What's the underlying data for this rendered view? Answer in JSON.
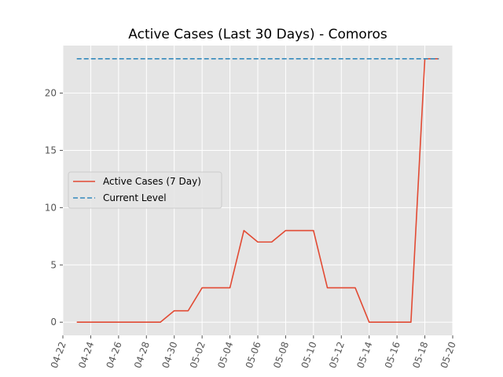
{
  "chart_data": {
    "type": "line",
    "title": "Active Cases (Last 30 Days) - Comoros",
    "xlabel": "",
    "ylabel": "",
    "x_axis_type": "date",
    "xlim": [
      "2020-04-22",
      "2020-05-20"
    ],
    "ylim": [
      -1.15,
      24.15
    ],
    "x_ticks": [
      "04-22",
      "04-24",
      "04-26",
      "04-28",
      "04-30",
      "05-02",
      "05-04",
      "05-06",
      "05-08",
      "05-10",
      "05-12",
      "05-14",
      "05-16",
      "05-18",
      "05-20"
    ],
    "y_ticks": [
      0,
      5,
      10,
      15,
      20
    ],
    "grid": true,
    "legend_position": "center-left",
    "series": [
      {
        "name": "Active Cases (7 Day)",
        "style": "solid",
        "color": "#E24A33",
        "x": [
          "2020-04-23",
          "2020-04-24",
          "2020-04-25",
          "2020-04-26",
          "2020-04-27",
          "2020-04-28",
          "2020-04-29",
          "2020-04-30",
          "2020-05-01",
          "2020-05-02",
          "2020-05-03",
          "2020-05-04",
          "2020-05-05",
          "2020-05-06",
          "2020-05-07",
          "2020-05-08",
          "2020-05-09",
          "2020-05-10",
          "2020-05-11",
          "2020-05-12",
          "2020-05-13",
          "2020-05-14",
          "2020-05-15",
          "2020-05-16",
          "2020-05-17",
          "2020-05-18",
          "2020-05-19"
        ],
        "values": [
          0,
          0,
          0,
          0,
          0,
          0,
          0,
          1,
          1,
          3,
          3,
          3,
          8,
          7,
          7,
          8,
          8,
          8,
          3,
          3,
          3,
          0,
          0,
          0,
          0,
          23,
          23
        ]
      },
      {
        "name": "Current Level",
        "style": "dashed",
        "color": "#348ABD",
        "x": [
          "2020-04-23",
          "2020-05-19"
        ],
        "values": [
          23,
          23
        ]
      }
    ]
  },
  "colors": {
    "plot_background": "#E5E5E5",
    "grid": "#FFFFFF",
    "tick": "#555555"
  }
}
